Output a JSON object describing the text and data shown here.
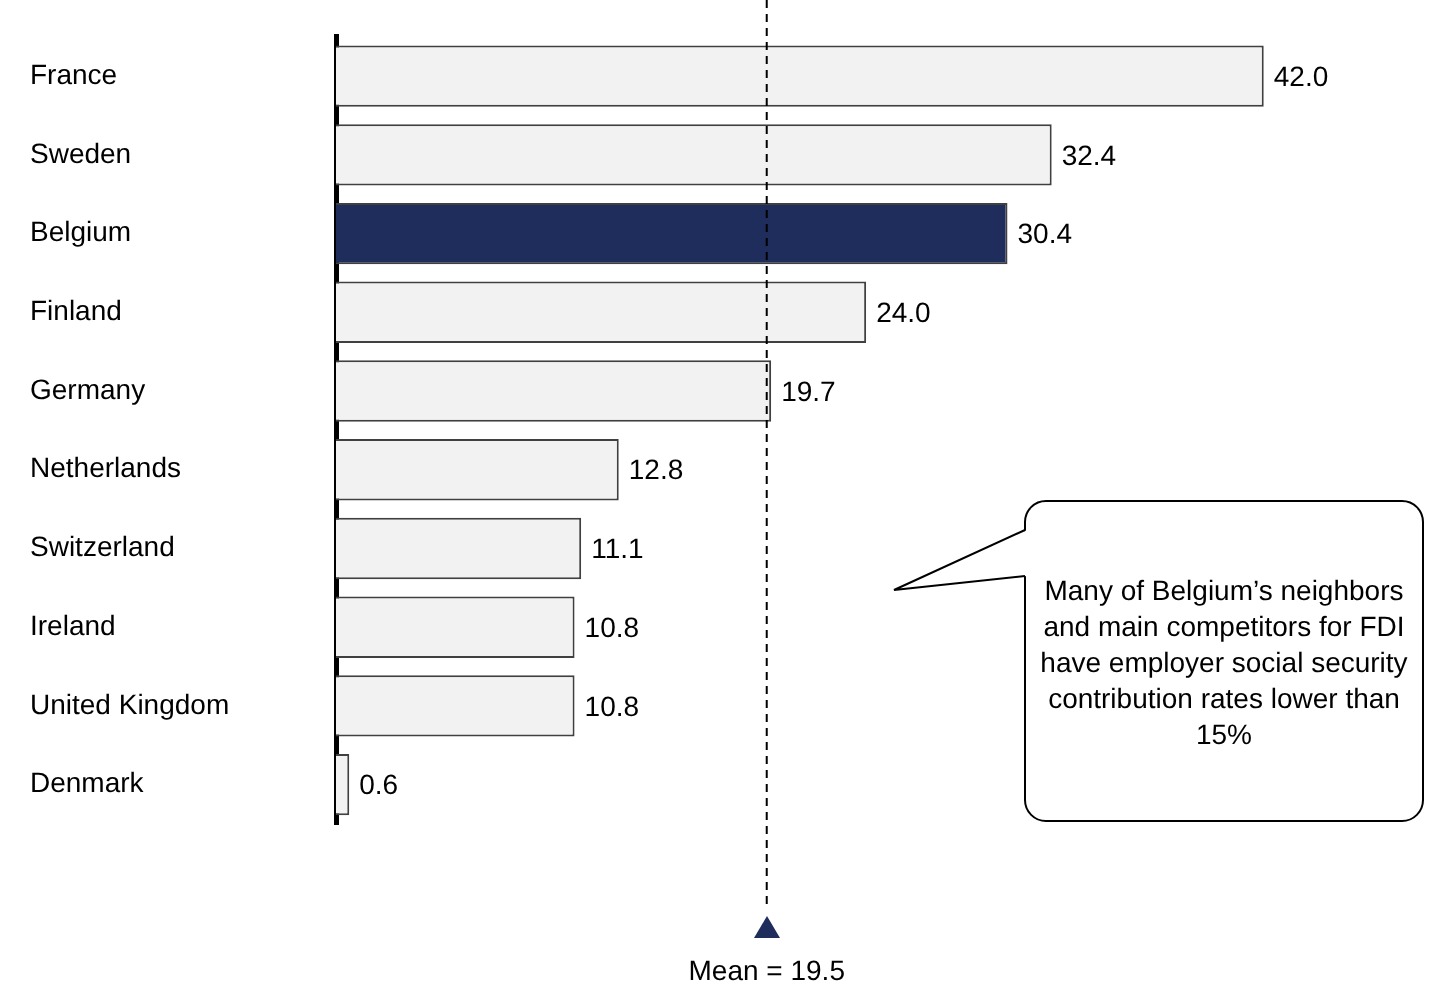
{
  "chart_data": {
    "type": "bar",
    "orientation": "horizontal",
    "categories": [
      "France",
      "Sweden",
      "Belgium",
      "Finland",
      "Germany",
      "Netherlands",
      "Switzerland",
      "Ireland",
      "United Kingdom",
      "Denmark"
    ],
    "values": [
      42.0,
      32.4,
      30.4,
      24.0,
      19.7,
      12.8,
      11.1,
      10.8,
      10.8,
      0.6
    ],
    "value_labels": [
      "42.0",
      "32.4",
      "30.4",
      "24.0",
      "19.7",
      "12.8",
      "11.1",
      "10.8",
      "10.8",
      "0.6"
    ],
    "colors": [
      "#f2f2f2",
      "#f2f2f2",
      "#1f2d5c",
      "#f2f2f2",
      "#f2f2f2",
      "#f2f2f2",
      "#f2f2f2",
      "#f2f2f2",
      "#f2f2f2",
      "#f2f2f2"
    ],
    "tick_labels": "y",
    "legend": false,
    "ref_lines": [
      {
        "axis": "x",
        "value": 19.5,
        "label": "Mean = 19.5",
        "line_style": "dashed",
        "color": "#000000"
      }
    ],
    "annotations": [
      "Many of Belgium’s neighbors and main competitors for FDI have employer social security contribution rates lower than 15%"
    ]
  }
}
